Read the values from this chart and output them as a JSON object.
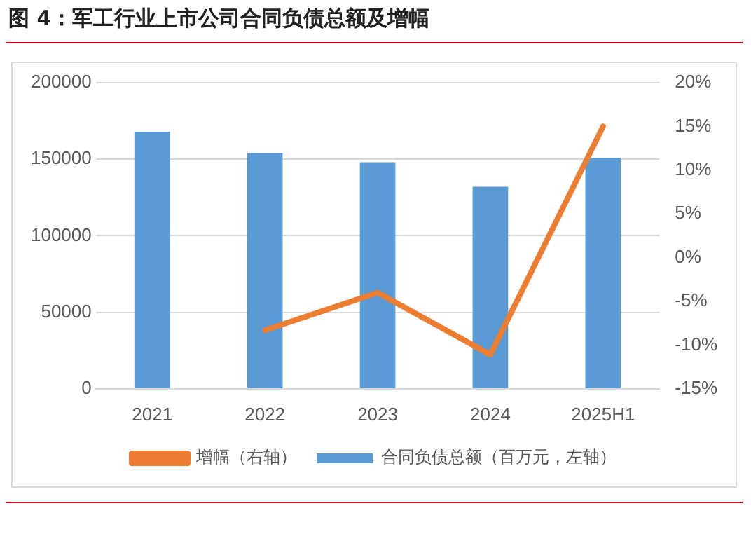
{
  "chart_data": {
    "type": "bar",
    "title": "图 4：军工行业上市公司合同负债总额及增幅",
    "categories": [
      "2021",
      "2022",
      "2023",
      "2024",
      "2025H1"
    ],
    "series": [
      {
        "name": "合同负债总额（百万元，左轴）",
        "color": "#5b9bd5",
        "values": [
          168000,
          154000,
          148000,
          132000,
          151000
        ]
      },
      {
        "name": "增幅（右轴）",
        "type": "line",
        "axis": "y2",
        "color": "#ed7d31",
        "values": [
          null,
          -8.3,
          -4.0,
          -11.1,
          15.0
        ]
      }
    ],
    "ylim": [
      0,
      200000
    ],
    "yticks": [
      0,
      50000,
      100000,
      150000,
      200000
    ],
    "y2lim": [
      -15,
      20
    ],
    "y2ticks": [
      {
        "value": -15,
        "label": "-15%"
      },
      {
        "value": -10,
        "label": "-10%"
      },
      {
        "value": -5,
        "label": "-5%"
      },
      {
        "value": 0,
        "label": "0%"
      },
      {
        "value": 5,
        "label": "5%"
      },
      {
        "value": 10,
        "label": "10%"
      },
      {
        "value": 15,
        "label": "15%"
      },
      {
        "value": 20,
        "label": "20%"
      }
    ],
    "grid": "y",
    "legend": "bottom",
    "marker": "none"
  }
}
